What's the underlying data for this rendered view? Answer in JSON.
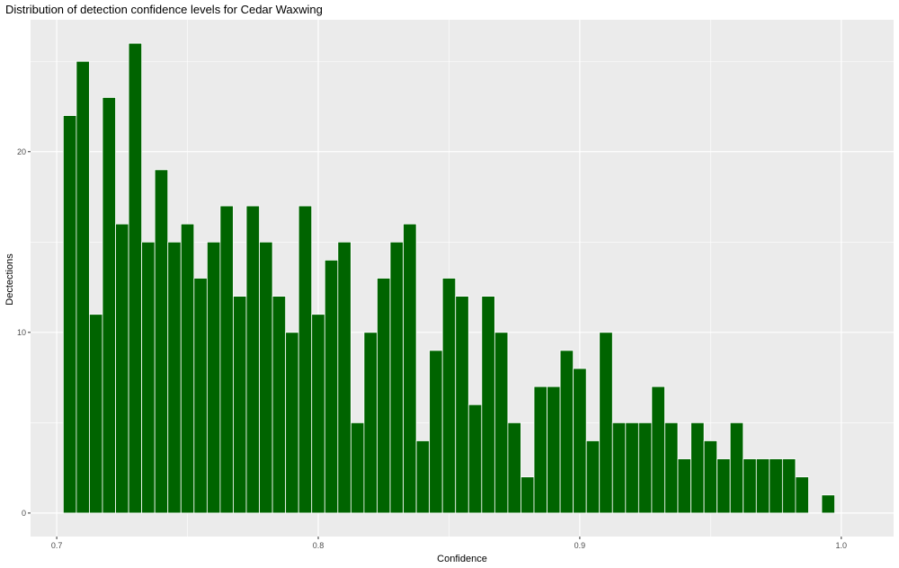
{
  "chart_data": {
    "type": "bar",
    "title": "Distribution of detection confidence levels for Cedar Waxwing",
    "xlabel": "Confidence",
    "ylabel": "Dectections",
    "xlim": [
      0.69,
      1.02
    ],
    "ylim": [
      -1.3,
      27.3
    ],
    "x_ticks": [
      0.7,
      0.8,
      0.9,
      1.0
    ],
    "x_tick_labels": [
      "0.7",
      "0.8",
      "0.9",
      "1.0"
    ],
    "y_ticks": [
      0,
      10,
      20
    ],
    "y_tick_labels": [
      "0",
      "10",
      "20"
    ],
    "grid": true,
    "legend": "none",
    "bin_width": 0.005,
    "bin_centers": [
      0.705,
      0.71,
      0.715,
      0.72,
      0.725,
      0.73,
      0.735,
      0.74,
      0.745,
      0.75,
      0.755,
      0.76,
      0.765,
      0.77,
      0.775,
      0.78,
      0.785,
      0.79,
      0.795,
      0.8,
      0.805,
      0.81,
      0.815,
      0.82,
      0.825,
      0.83,
      0.835,
      0.84,
      0.845,
      0.85,
      0.855,
      0.86,
      0.865,
      0.87,
      0.875,
      0.88,
      0.885,
      0.89,
      0.895,
      0.9,
      0.905,
      0.91,
      0.915,
      0.92,
      0.925,
      0.93,
      0.935,
      0.94,
      0.945,
      0.95,
      0.955,
      0.96,
      0.965,
      0.97,
      0.975,
      0.98,
      0.985,
      0.99,
      0.995
    ],
    "values": [
      22,
      25,
      11,
      23,
      16,
      26,
      15,
      19,
      15,
      16,
      13,
      15,
      17,
      12,
      17,
      15,
      12,
      10,
      17,
      11,
      14,
      15,
      5,
      10,
      13,
      15,
      16,
      4,
      9,
      13,
      12,
      6,
      12,
      10,
      5,
      2,
      7,
      7,
      9,
      8,
      4,
      10,
      5,
      5,
      5,
      7,
      5,
      3,
      5,
      4,
      3,
      5,
      3,
      3,
      3,
      3,
      2,
      0,
      1
    ],
    "colors": {
      "bar_fill": "#006400",
      "bar_outline": "#ffffff",
      "panel_background": "#ebebeb",
      "grid": "#ffffff"
    }
  }
}
